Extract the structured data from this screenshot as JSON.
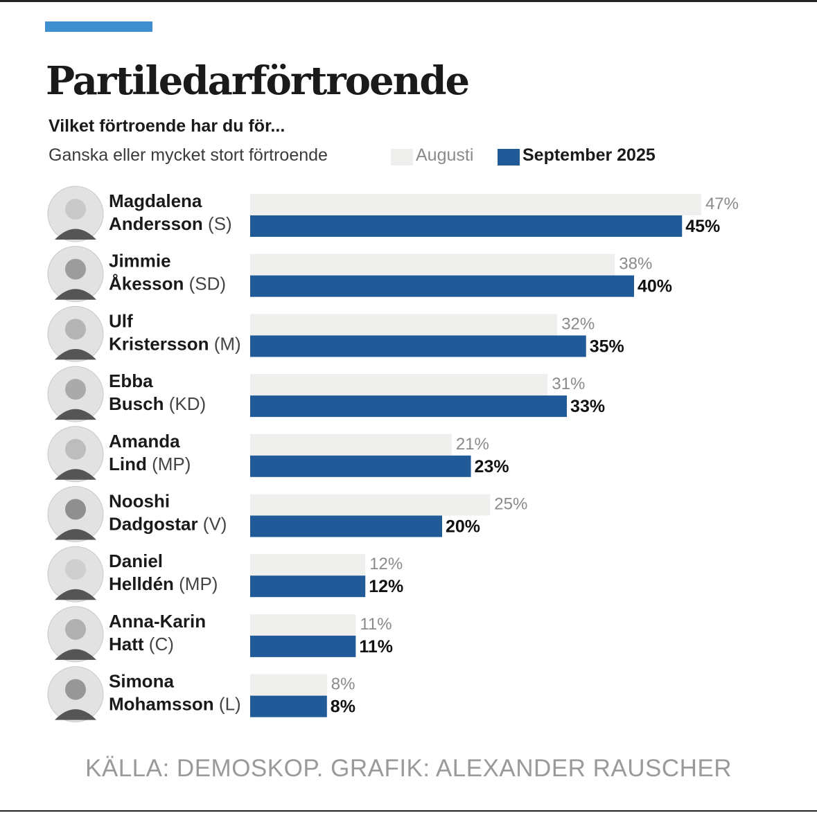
{
  "chart_data": {
    "type": "bar",
    "title": "Partiledarförtroende",
    "subtitle": "Vilket förtroende har du för...",
    "legend_description": "Ganska eller mycket stort förtroende",
    "legend_placement": "top",
    "series": [
      {
        "name": "Augusti",
        "color": "#efefed",
        "values": [
          47,
          38,
          32,
          31,
          21,
          25,
          12,
          11,
          8
        ]
      },
      {
        "name": "September 2025",
        "color": "#215a99",
        "values": [
          45,
          40,
          35,
          33,
          23,
          20,
          12,
          11,
          8
        ]
      }
    ],
    "categories": [
      {
        "first": "Magdalena",
        "last": "Andersson",
        "party": "(S)"
      },
      {
        "first": "Jimmie",
        "last": "Åkesson",
        "party": "(SD)"
      },
      {
        "first": "Ulf",
        "last": "Kristersson",
        "party": "(M)"
      },
      {
        "first": "Ebba",
        "last": "Busch",
        "party": "(KD)"
      },
      {
        "first": "Amanda",
        "last": "Lind",
        "party": "(MP)"
      },
      {
        "first": "Nooshi",
        "last": "Dadgostar",
        "party": "(V)"
      },
      {
        "first": "Daniel",
        "last": "Helldén",
        "party": "(MP)"
      },
      {
        "first": "Anna-Karin",
        "last": "Hatt",
        "party": "(C)"
      },
      {
        "first": "Simona",
        "last": "Mohamsson",
        "party": "(L)"
      }
    ],
    "value_suffix": "%",
    "xlim": [
      0,
      50
    ],
    "grid": false,
    "source": "KÄLLA: DEMOSKOP. GRAFIK: ALEXANDER RAUSCHER"
  }
}
